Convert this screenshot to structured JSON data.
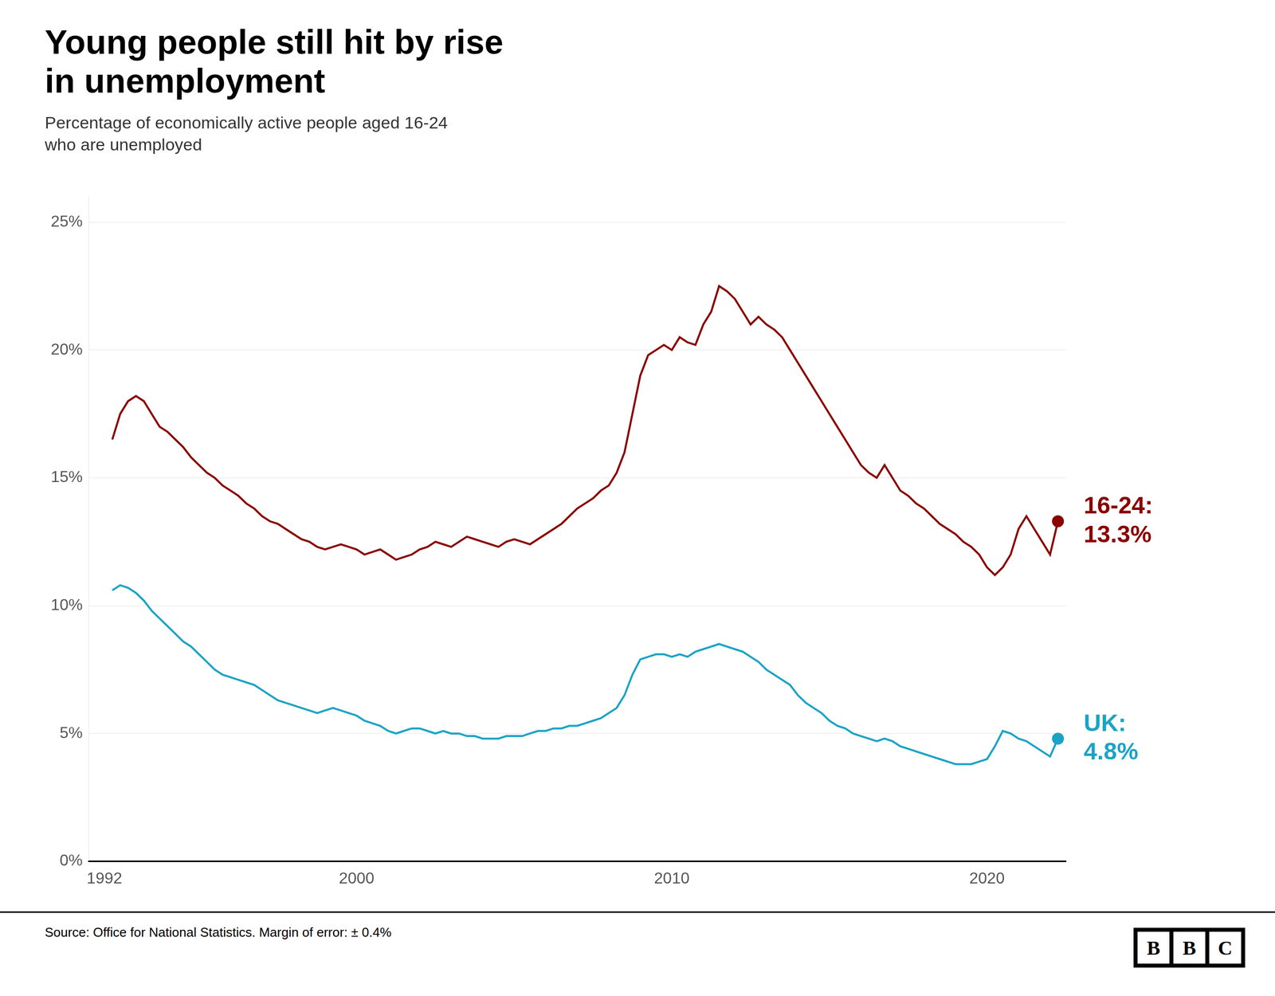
{
  "chart_data": {
    "type": "line",
    "title": "Young people still hit by rise\nin unemployment",
    "subtitle": "Percentage of economically active people aged 16-24\nwho are unemployed",
    "source": "Source: Office for National Statistics.  Margin of error: ± 0.4%",
    "logo": "BBC",
    "x": [
      1992.25,
      1992.5,
      1992.75,
      1993.0,
      1993.25,
      1993.5,
      1993.75,
      1994.0,
      1994.25,
      1994.5,
      1994.75,
      1995.0,
      1995.25,
      1995.5,
      1995.75,
      1996.0,
      1996.25,
      1996.5,
      1996.75,
      1997.0,
      1997.25,
      1997.5,
      1997.75,
      1998.0,
      1998.25,
      1998.5,
      1998.75,
      1999.0,
      1999.25,
      1999.5,
      1999.75,
      2000.0,
      2000.25,
      2000.5,
      2000.75,
      2001.0,
      2001.25,
      2001.5,
      2001.75,
      2002.0,
      2002.25,
      2002.5,
      2002.75,
      2003.0,
      2003.25,
      2003.5,
      2003.75,
      2004.0,
      2004.25,
      2004.5,
      2004.75,
      2005.0,
      2005.25,
      2005.5,
      2005.75,
      2006.0,
      2006.25,
      2006.5,
      2006.75,
      2007.0,
      2007.25,
      2007.5,
      2007.75,
      2008.0,
      2008.25,
      2008.5,
      2008.75,
      2009.0,
      2009.25,
      2009.5,
      2009.75,
      2010.0,
      2010.25,
      2010.5,
      2010.75,
      2011.0,
      2011.25,
      2011.5,
      2011.75,
      2012.0,
      2012.25,
      2012.5,
      2012.75,
      2013.0,
      2013.25,
      2013.5,
      2013.75,
      2014.0,
      2014.25,
      2014.5,
      2014.75,
      2015.0,
      2015.25,
      2015.5,
      2015.75,
      2016.0,
      2016.25,
      2016.5,
      2016.75,
      2017.0,
      2017.25,
      2017.5,
      2017.75,
      2018.0,
      2018.25,
      2018.5,
      2018.75,
      2019.0,
      2019.25,
      2019.5,
      2019.75,
      2020.0,
      2020.25,
      2020.5,
      2020.75,
      2021.0,
      2021.25,
      2021.5,
      2021.75,
      2022.0,
      2022.25
    ],
    "series": [
      {
        "color": "#8B0000",
        "values": [
          16.5,
          17.5,
          18.0,
          18.2,
          18.0,
          17.5,
          17.0,
          16.8,
          16.5,
          16.2,
          15.8,
          15.5,
          15.2,
          15.0,
          14.7,
          14.5,
          14.3,
          14.0,
          13.8,
          13.5,
          13.3,
          13.2,
          13.0,
          12.8,
          12.6,
          12.5,
          12.3,
          12.2,
          12.3,
          12.4,
          12.3,
          12.2,
          12.0,
          12.1,
          12.2,
          12.0,
          11.8,
          11.9,
          12.0,
          12.2,
          12.3,
          12.5,
          12.4,
          12.3,
          12.5,
          12.7,
          12.6,
          12.5,
          12.4,
          12.3,
          12.5,
          12.6,
          12.5,
          12.4,
          12.6,
          12.8,
          13.0,
          13.2,
          13.5,
          13.8,
          14.0,
          14.2,
          14.5,
          14.7,
          15.2,
          16.0,
          17.5,
          19.0,
          19.8,
          20.0,
          20.2,
          20.0,
          20.5,
          20.3,
          20.2,
          21.0,
          21.5,
          22.5,
          22.3,
          22.0,
          21.5,
          21.0,
          21.3,
          21.0,
          20.8,
          20.5,
          20.0,
          19.5,
          19.0,
          18.5,
          18.0,
          17.5,
          17.0,
          16.5,
          16.0,
          15.5,
          15.2,
          15.0,
          15.5,
          15.0,
          14.5,
          14.3,
          14.0,
          13.8,
          13.5,
          13.2,
          13.0,
          12.8,
          12.5,
          12.3,
          12.0,
          11.5,
          11.2,
          11.5,
          12.0,
          13.0,
          13.5,
          13.0,
          12.5,
          12.0,
          13.3
        ]
      },
      {
        "color": "#1BA3C6",
        "values": [
          10.6,
          10.8,
          10.7,
          10.5,
          10.2,
          9.8,
          9.5,
          9.2,
          8.9,
          8.6,
          8.4,
          8.1,
          7.8,
          7.5,
          7.3,
          7.2,
          7.1,
          7.0,
          6.9,
          6.7,
          6.5,
          6.3,
          6.2,
          6.1,
          6.0,
          5.9,
          5.8,
          5.9,
          6.0,
          5.9,
          5.8,
          5.7,
          5.5,
          5.4,
          5.3,
          5.1,
          5.0,
          5.1,
          5.2,
          5.2,
          5.1,
          5.0,
          5.1,
          5.0,
          5.0,
          4.9,
          4.9,
          4.8,
          4.8,
          4.8,
          4.9,
          4.9,
          4.9,
          5.0,
          5.1,
          5.1,
          5.2,
          5.2,
          5.3,
          5.3,
          5.4,
          5.5,
          5.6,
          5.8,
          6.0,
          6.5,
          7.3,
          7.9,
          8.0,
          8.1,
          8.1,
          8.0,
          8.1,
          8.0,
          8.2,
          8.3,
          8.4,
          8.5,
          8.4,
          8.3,
          8.2,
          8.0,
          7.8,
          7.5,
          7.3,
          7.1,
          6.9,
          6.5,
          6.2,
          6.0,
          5.8,
          5.5,
          5.3,
          5.2,
          5.0,
          4.9,
          4.8,
          4.7,
          4.8,
          4.7,
          4.5,
          4.4,
          4.3,
          4.2,
          4.1,
          4.0,
          3.9,
          3.8,
          3.8,
          3.8,
          3.9,
          4.0,
          4.5,
          5.1,
          5.0,
          4.8,
          4.7,
          4.5,
          4.3,
          4.1,
          4.8
        ]
      }
    ],
    "annotations": [
      {
        "text": "16-24:\n13.3%",
        "y": 13.3,
        "color": "#8B0000"
      },
      {
        "text": "UK:\n4.8%",
        "y": 4.8,
        "color": "#1BA3C6"
      }
    ],
    "xlim": [
      1991.5,
      2022.5
    ],
    "xticks": [
      1992,
      2000,
      2010,
      2020
    ],
    "ylim": [
      0,
      26
    ],
    "yticks": [
      {
        "value": 0,
        "label": "0%"
      },
      {
        "value": 5,
        "label": "5%"
      },
      {
        "value": 10,
        "label": "10%"
      },
      {
        "value": 15,
        "label": "15%"
      },
      {
        "value": 20,
        "label": "20%"
      },
      {
        "value": 25,
        "label": "25%"
      }
    ],
    "grid": "y"
  }
}
